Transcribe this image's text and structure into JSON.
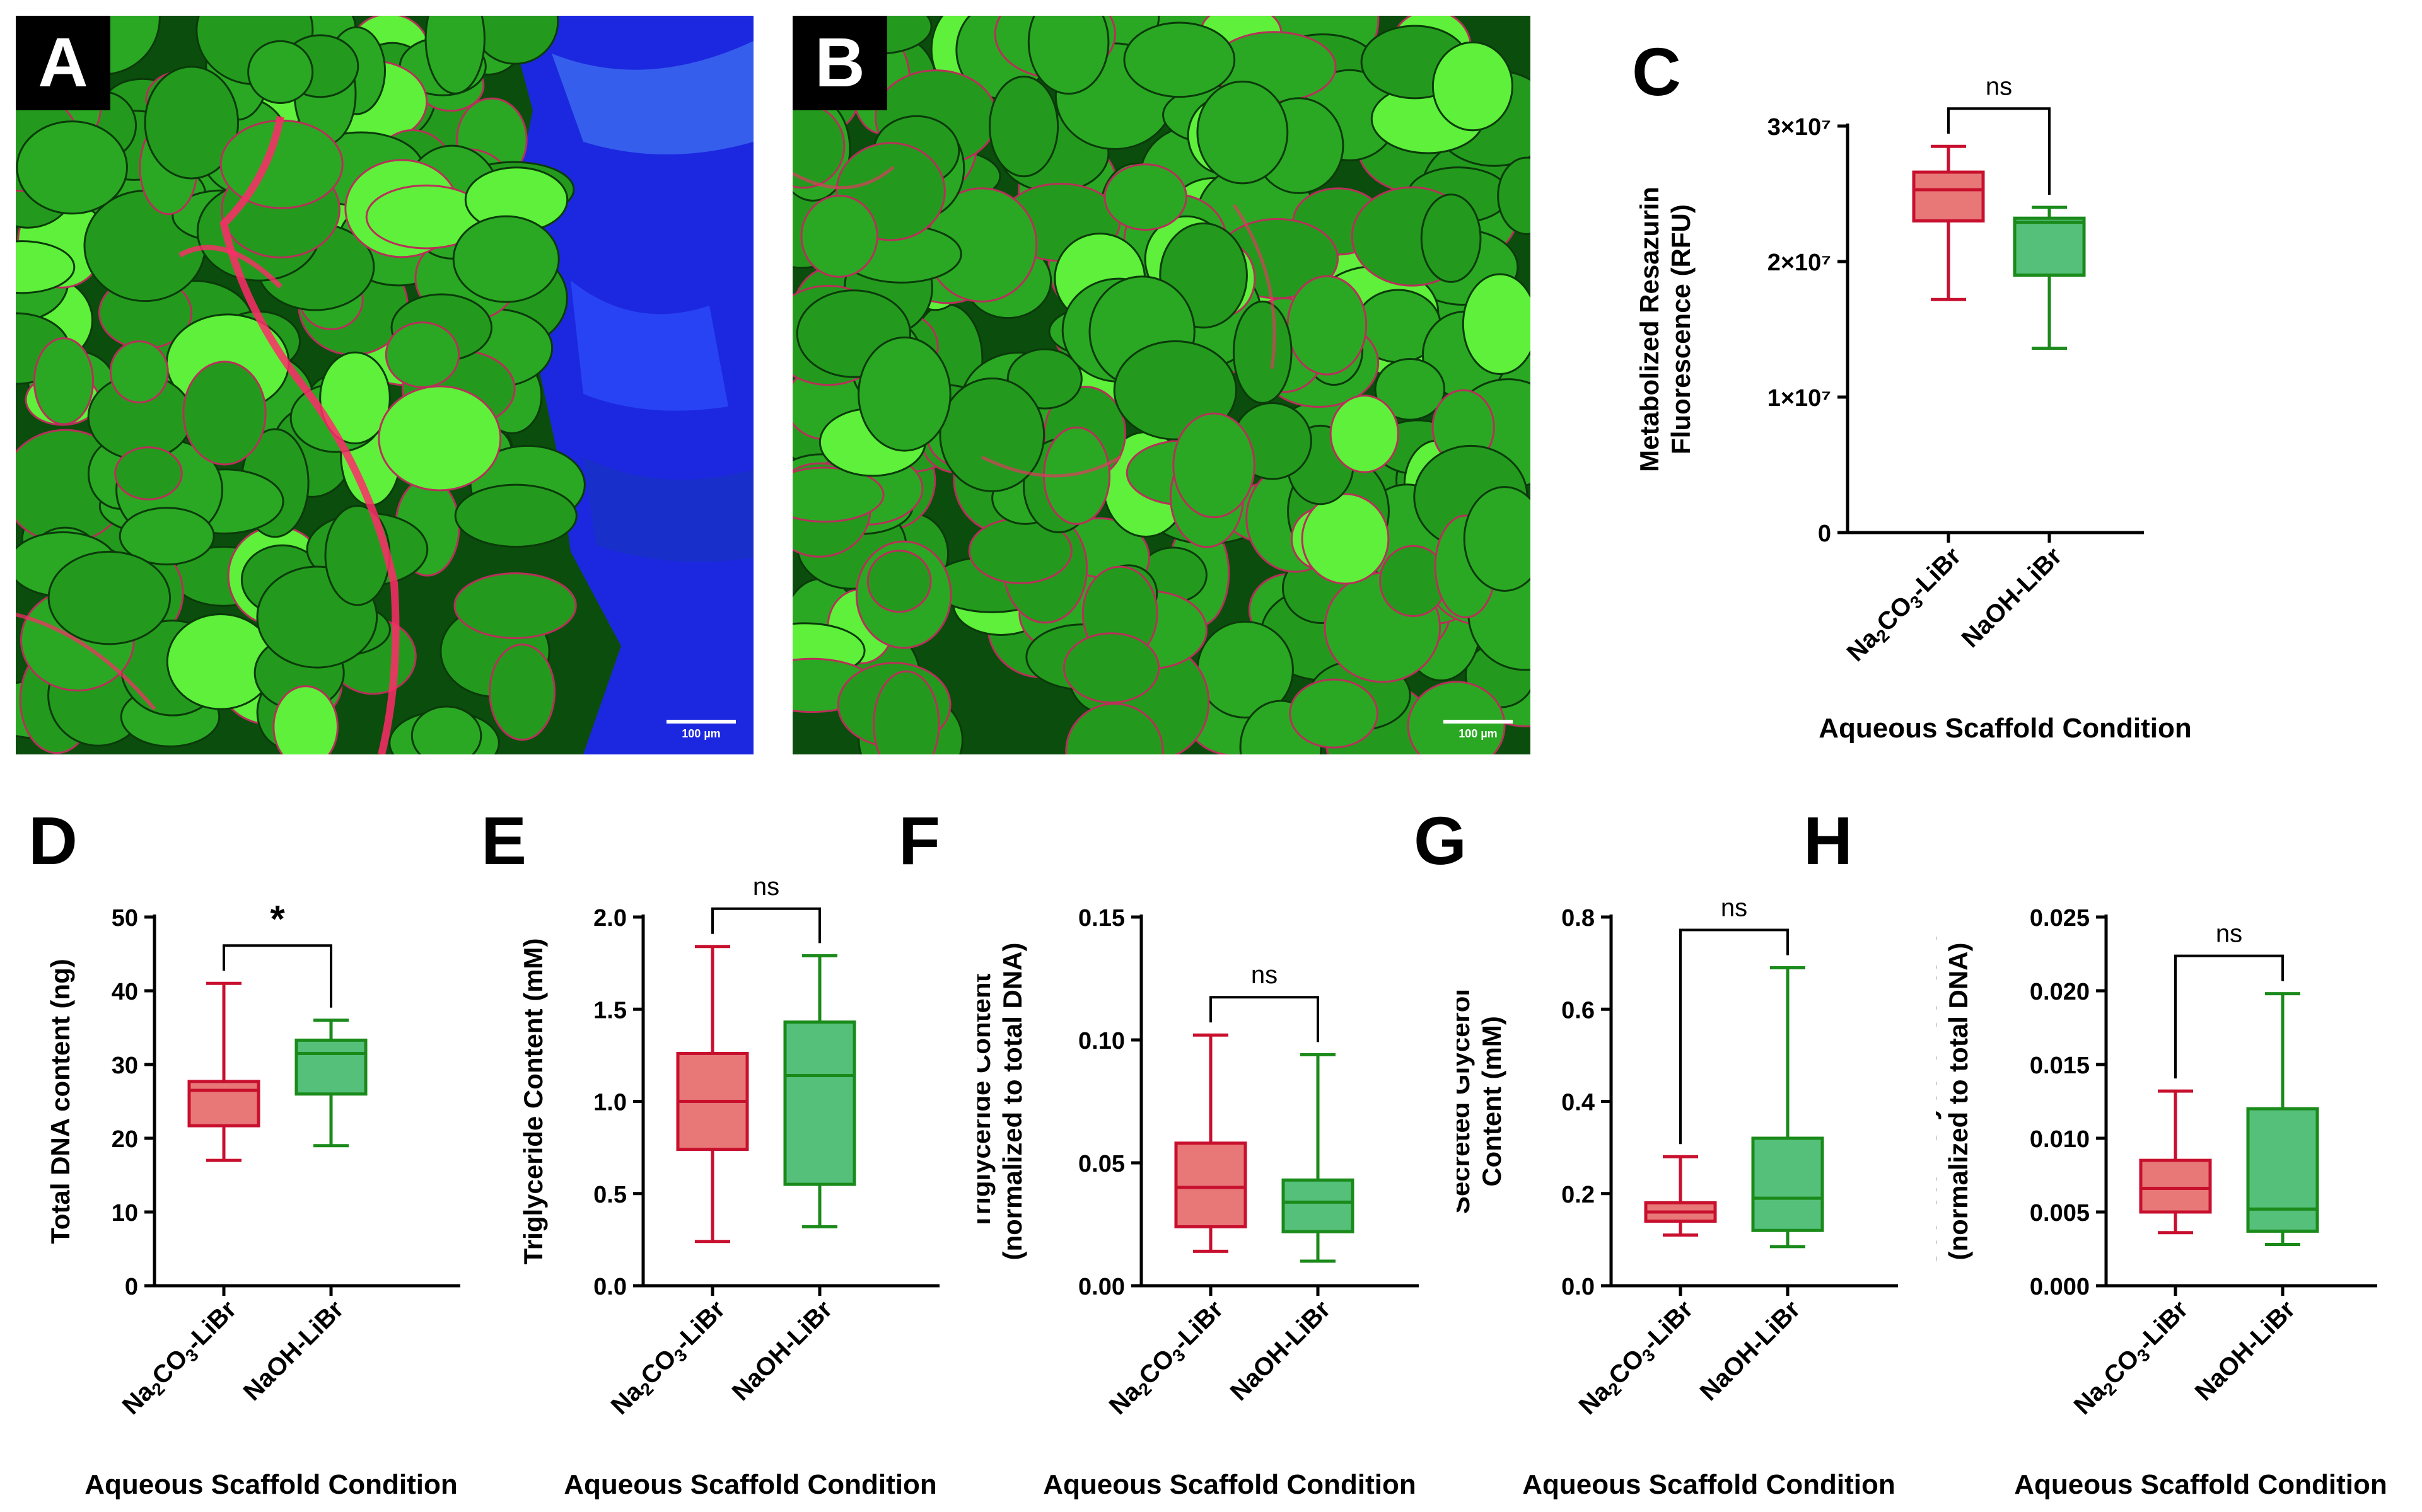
{
  "panels": {
    "A": {
      "label": "A",
      "scale_bar": "100 µm"
    },
    "B": {
      "label": "B",
      "scale_bar": "100 µm"
    }
  },
  "colors": {
    "red": "#c8102e",
    "red_fill": "#e87878",
    "green": "#1a8a1a",
    "green_fill": "#55c07a"
  },
  "x_axis_title": "Aqueous Scaffold Condition",
  "chart_data": [
    {
      "panel": "C",
      "type": "box",
      "ylabel": [
        "Metabolized Resazurin",
        "Fluorescence (RFU)"
      ],
      "xlabel": "Aqueous Scaffold Condition",
      "categories": [
        "Na2CO3-LiBr",
        "NaOH-LiBr"
      ],
      "ylim": [
        0,
        30000000
      ],
      "yticks": [
        0,
        10000000,
        20000000,
        30000000
      ],
      "ytick_labels": [
        "0",
        "1×10⁷",
        "2×10⁷",
        "3×10⁷"
      ],
      "boxes": [
        {
          "min": 17200000,
          "q1": 23000000,
          "median": 25300000,
          "q3": 26600000,
          "max": 28500000
        },
        {
          "min": 13600000,
          "q1": 19000000,
          "median": 22900000,
          "q3": 23200000,
          "max": 24000000
        }
      ],
      "significance": "ns"
    },
    {
      "panel": "D",
      "type": "box",
      "ylabel": [
        "Total DNA content (ng)"
      ],
      "xlabel": "Aqueous Scaffold Condition",
      "categories": [
        "Na2CO3-LiBr",
        "NaOH-LiBr"
      ],
      "ylim": [
        0,
        50
      ],
      "yticks": [
        0,
        10,
        20,
        30,
        40,
        50
      ],
      "ytick_labels": [
        "0",
        "10",
        "20",
        "30",
        "40",
        "50"
      ],
      "boxes": [
        {
          "min": 17,
          "q1": 21.7,
          "median": 26.5,
          "q3": 27.7,
          "max": 41
        },
        {
          "min": 19,
          "q1": 26,
          "median": 31.5,
          "q3": 33.3,
          "max": 36
        }
      ],
      "significance": "*"
    },
    {
      "panel": "E",
      "type": "box",
      "ylabel": [
        "Triglyceride Content (mM)"
      ],
      "xlabel": "Aqueous Scaffold Condition",
      "categories": [
        "Na2CO3-LiBr",
        "NaOH-LiBr"
      ],
      "ylim": [
        0,
        2.0
      ],
      "yticks": [
        0,
        0.5,
        1.0,
        1.5,
        2.0
      ],
      "ytick_labels": [
        "0.0",
        "0.5",
        "1.0",
        "1.5",
        "2.0"
      ],
      "boxes": [
        {
          "min": 0.24,
          "q1": 0.74,
          "median": 1.0,
          "q3": 1.26,
          "max": 1.84
        },
        {
          "min": 0.32,
          "q1": 0.55,
          "median": 1.14,
          "q3": 1.43,
          "max": 1.79
        }
      ],
      "significance": "ns"
    },
    {
      "panel": "F",
      "type": "box",
      "ylabel": [
        "Triglyceride Content",
        "(normalized to total DNA)"
      ],
      "xlabel": "Aqueous Scaffold Condition",
      "categories": [
        "Na2CO3-LiBr",
        "NaOH-LiBr"
      ],
      "ylim": [
        0,
        0.15
      ],
      "yticks": [
        0,
        0.05,
        0.1,
        0.15
      ],
      "ytick_labels": [
        "0.00",
        "0.05",
        "0.10",
        "0.15"
      ],
      "boxes": [
        {
          "min": 0.014,
          "q1": 0.024,
          "median": 0.04,
          "q3": 0.058,
          "max": 0.102
        },
        {
          "min": 0.01,
          "q1": 0.022,
          "median": 0.034,
          "q3": 0.043,
          "max": 0.094
        }
      ],
      "significance": "ns"
    },
    {
      "panel": "G",
      "type": "box",
      "ylabel": [
        "Secreted Glycerol",
        "Content (mM)"
      ],
      "xlabel": "Aqueous Scaffold Condition",
      "categories": [
        "Na2CO3-LiBr",
        "NaOH-LiBr"
      ],
      "ylim": [
        0,
        0.8
      ],
      "yticks": [
        0,
        0.2,
        0.4,
        0.6,
        0.8
      ],
      "ytick_labels": [
        "0.0",
        "0.2",
        "0.4",
        "0.6",
        "0.8"
      ],
      "boxes": [
        {
          "min": 0.11,
          "q1": 0.14,
          "median": 0.16,
          "q3": 0.18,
          "max": 0.28
        },
        {
          "min": 0.085,
          "q1": 0.12,
          "median": 0.19,
          "q3": 0.32,
          "max": 0.69
        }
      ],
      "significance": "ns"
    },
    {
      "panel": "H",
      "type": "box",
      "ylabel": [
        "Secreted Glycerol Content",
        "(normalized to total DNA)"
      ],
      "xlabel": "Aqueous Scaffold Condition",
      "categories": [
        "Na2CO3-LiBr",
        "NaOH-LiBr"
      ],
      "ylim": [
        0,
        0.025
      ],
      "yticks": [
        0,
        0.005,
        0.01,
        0.015,
        0.02,
        0.025
      ],
      "ytick_labels": [
        "0.000",
        "0.005",
        "0.010",
        "0.015",
        "0.020",
        "0.025"
      ],
      "boxes": [
        {
          "min": 0.0036,
          "q1": 0.005,
          "median": 0.0066,
          "q3": 0.0085,
          "max": 0.0132
        },
        {
          "min": 0.0028,
          "q1": 0.0037,
          "median": 0.0052,
          "q3": 0.012,
          "max": 0.0198
        }
      ],
      "significance": "ns"
    }
  ]
}
